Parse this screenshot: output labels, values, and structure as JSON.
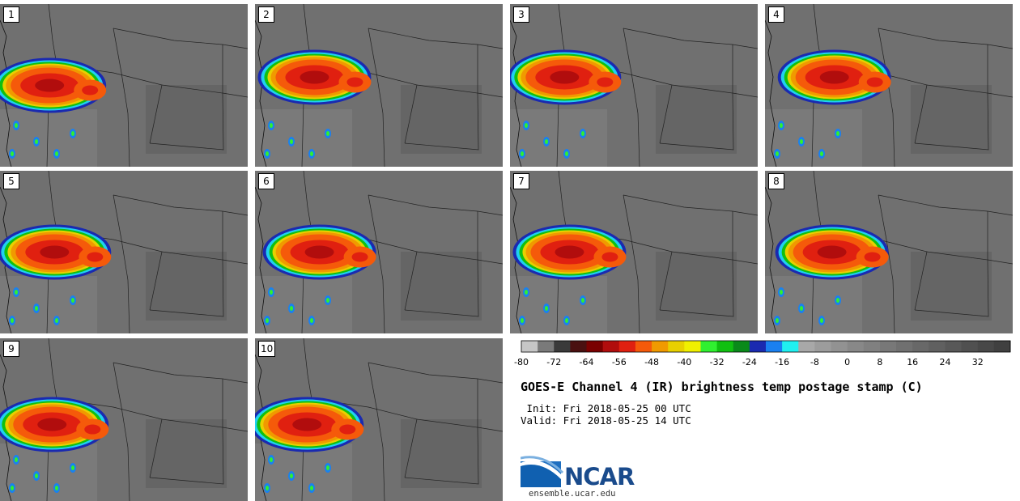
{
  "panels": [
    {
      "label": "1",
      "storm_center": [
        0.2,
        0.5
      ]
    },
    {
      "label": "2",
      "storm_center": [
        0.24,
        0.45
      ]
    },
    {
      "label": "3",
      "storm_center": [
        0.22,
        0.45
      ]
    },
    {
      "label": "4",
      "storm_center": [
        0.28,
        0.45
      ]
    },
    {
      "label": "5",
      "storm_center": [
        0.22,
        0.5
      ]
    },
    {
      "label": "6",
      "storm_center": [
        0.26,
        0.5
      ]
    },
    {
      "label": "7",
      "storm_center": [
        0.24,
        0.5
      ]
    },
    {
      "label": "8",
      "storm_center": [
        0.27,
        0.5
      ]
    },
    {
      "label": "9",
      "storm_center": [
        0.21,
        0.53
      ]
    },
    {
      "label": "10",
      "storm_center": [
        0.21,
        0.53
      ]
    }
  ],
  "colorbar": {
    "min": -80,
    "max": 40,
    "step": 4,
    "tick_labels": [
      "-80",
      "-72",
      "-64",
      "-56",
      "-48",
      "-40",
      "-32",
      "-24",
      "-16",
      "-8",
      "0",
      "8",
      "16",
      "24",
      "32"
    ],
    "colors": [
      "#c6c6c6",
      "#7a7a7a",
      "#3a3a3a",
      "#4a1010",
      "#7a0000",
      "#b10d0d",
      "#e02010",
      "#f55a0a",
      "#f09a00",
      "#e8d000",
      "#f0f000",
      "#30f030",
      "#10c010",
      "#0a8a1a",
      "#1a2ab0",
      "#1a80f0",
      "#20f0f0",
      "#a8a8a8",
      "#9c9c9c",
      "#929292",
      "#888888",
      "#808080",
      "#787878",
      "#707070",
      "#686868",
      "#606060",
      "#585858",
      "#505050",
      "#484848",
      "#404040"
    ]
  },
  "title": "GOES-E Channel 4 (IR) brightness temp postage stamp (C)",
  "init_text": " Init: Fri 2018-05-25 00 UTC",
  "valid_text": "Valid: Fri 2018-05-25 14 UTC",
  "logo": {
    "name": "NCAR",
    "url": "ensemble.ucar.edu"
  }
}
